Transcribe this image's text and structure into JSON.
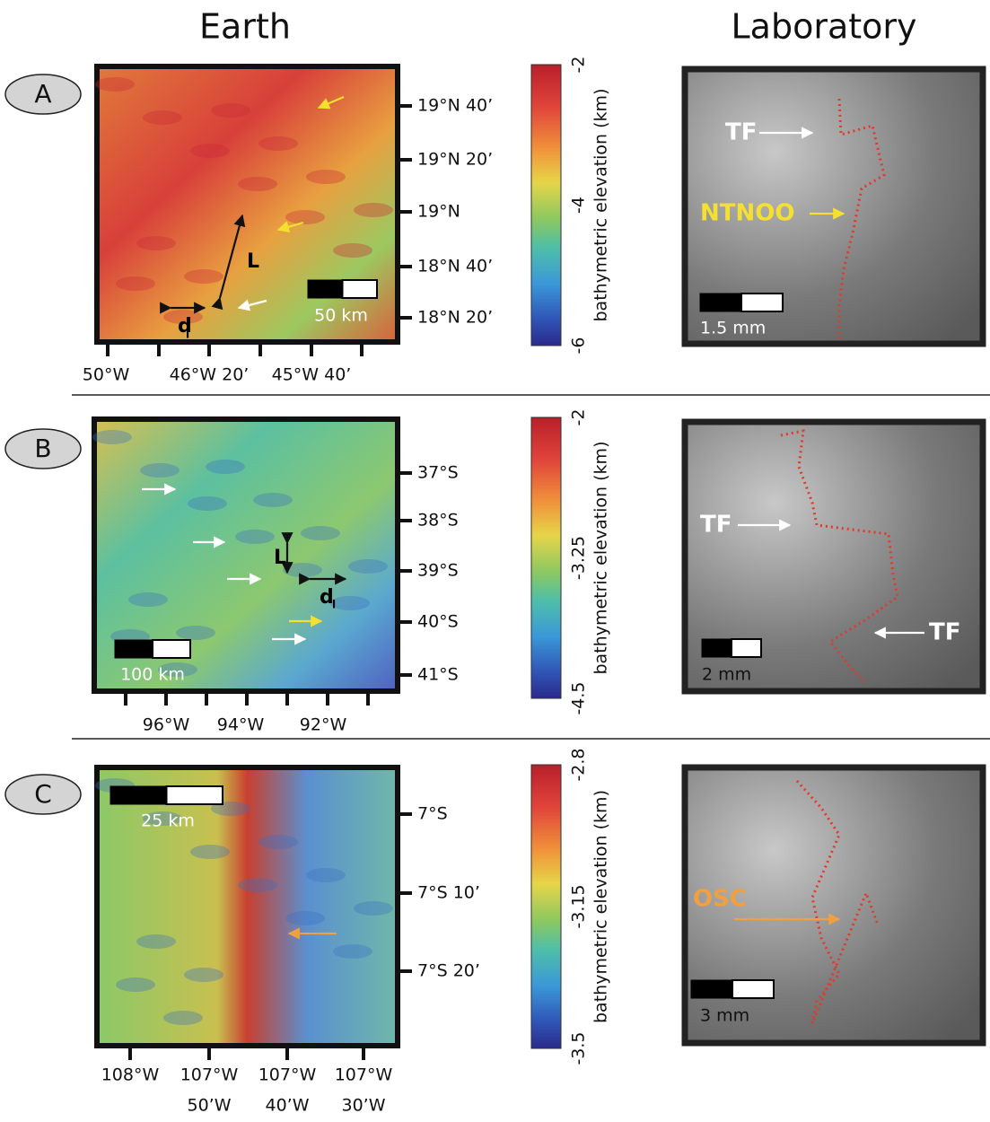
{
  "headers": {
    "earth": "Earth",
    "laboratory": "Laboratory"
  },
  "panels": [
    {
      "label": "A",
      "map": {
        "lat_ticks": [
          "19°N 40’",
          "19°N 20’",
          "19°N",
          "18°N 40’",
          "18°N 20’"
        ],
        "lon_ticks": [
          [
            "50°W"
          ],
          [
            "46°W 20’"
          ],
          [
            "45°W 40’"
          ]
        ],
        "scale_bar": "50 km",
        "annotations": [
          "L",
          "d",
          "l"
        ]
      },
      "colorbar": {
        "ticks": [
          "-2",
          "-4",
          "-6"
        ],
        "label": "bathymetric elevation (km)"
      },
      "lab": {
        "scale_bar": "1.5 mm",
        "annotations": [
          "TF",
          "NTNOO"
        ]
      }
    },
    {
      "label": "B",
      "map": {
        "lat_ticks": [
          "37°S",
          "38°S",
          "39°S",
          "40°S",
          "41°S"
        ],
        "lon_ticks": [
          [
            "96°W"
          ],
          [
            "94°W"
          ],
          [
            "92°W"
          ]
        ],
        "scale_bar": "100 km",
        "annotations": [
          "L",
          "d",
          "l"
        ]
      },
      "colorbar": {
        "ticks": [
          "-2",
          "-3.25",
          "-4.5"
        ],
        "label": "bathymetric elevation (km)"
      },
      "lab": {
        "scale_bar": "2 mm",
        "annotations": [
          "TF",
          "TF"
        ]
      }
    },
    {
      "label": "C",
      "map": {
        "lat_ticks": [
          "7°S",
          "7°S 10’",
          "7°S 20’"
        ],
        "lon_ticks": [
          [
            "108°W"
          ],
          [
            "107°W",
            "50’W"
          ],
          [
            "107°W",
            "40’W"
          ],
          [
            "107°W",
            "30’W"
          ]
        ],
        "scale_bar": "25 km",
        "annotations": []
      },
      "colorbar": {
        "ticks": [
          "-2.8",
          "-3.15",
          "-3.5"
        ],
        "label": "bathymetric elevation (km)"
      },
      "lab": {
        "scale_bar": "3 mm",
        "annotations": [
          "OSC"
        ]
      }
    }
  ]
}
